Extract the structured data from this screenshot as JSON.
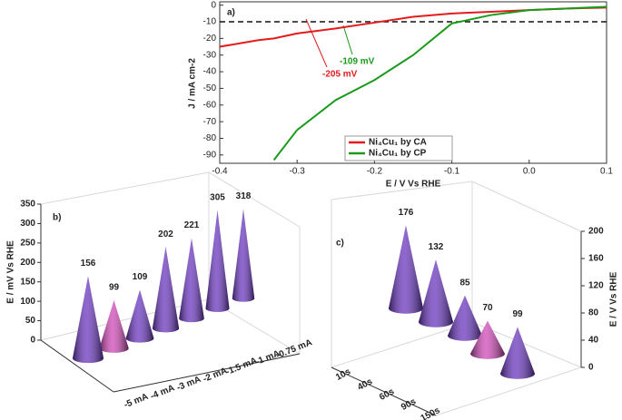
{
  "chart_data": [
    {
      "type": "line",
      "title": "a)",
      "x_label": "E / V Vs RHE",
      "y_label": "J / mA cm-2",
      "x": [
        -0.4,
        -0.35,
        -0.33,
        -0.3,
        -0.25,
        -0.2,
        -0.15,
        -0.1,
        -0.05,
        0,
        0.05,
        0.1
      ],
      "series": [
        {
          "name": "Ni₄Cu₁ by CA",
          "color": "#e41a1c",
          "values": [
            -25,
            -21,
            -20,
            -17,
            -14,
            -10.5,
            -7,
            -5,
            -4,
            -3,
            -2,
            -1.5
          ]
        },
        {
          "name": "Ni₄Cu₁ by CP",
          "color": "#1a9a1a",
          "values": [
            null,
            null,
            -93,
            -75,
            -57,
            -45,
            -30,
            -11,
            -6,
            -3,
            -2,
            -1
          ]
        }
      ],
      "reference_line": -10,
      "annotations": [
        {
          "text": "-205 mV",
          "color": "#e41a1c"
        },
        {
          "text": "-109 mV",
          "color": "#1a9a1a"
        }
      ],
      "xlim": [
        -0.4,
        0.1
      ],
      "xticks": [
        -0.4,
        -0.3,
        -0.2,
        -0.1,
        {
          "value": 0,
          "label": "0.0"
        },
        0.1
      ],
      "ylim": [
        -95,
        2
      ],
      "yticks": [
        0,
        -10,
        -20,
        -30,
        -40,
        -50,
        -60,
        -70,
        -80,
        -90
      ],
      "legend": "lower right"
    },
    {
      "type": "cone3d",
      "title": "b)",
      "z_label": "E / mV Vs RHE",
      "categories": [
        "-5 mA",
        "-4 mA",
        "-3 mA",
        "-2 mA",
        "-1.5 mA",
        "-1 mA",
        "-0.75 mA"
      ],
      "values": [
        156,
        99,
        109,
        202,
        221,
        305,
        318
      ],
      "colors": [
        "#6a35c0",
        "#d048b8",
        "#6a35c0",
        "#6a35c0",
        "#6a35c0",
        "#6a35c0",
        "#6a35c0"
      ],
      "zlim": [
        0,
        350
      ],
      "zticks": [
        0,
        50,
        100,
        150,
        200,
        250,
        300,
        350
      ]
    },
    {
      "type": "cone3d",
      "title": "c)",
      "z_label": "E / V Vs RHE",
      "categories": [
        "10s",
        "40s",
        "60s",
        "90s",
        "150s"
      ],
      "values": [
        176,
        132,
        85,
        70,
        99
      ],
      "colors": [
        "#6a35c0",
        "#6a35c0",
        "#6a35c0",
        "#d048b8",
        "#6a35c0"
      ],
      "zlim": [
        0,
        200
      ],
      "zticks": [
        0,
        40,
        80,
        120,
        160,
        200
      ]
    }
  ]
}
